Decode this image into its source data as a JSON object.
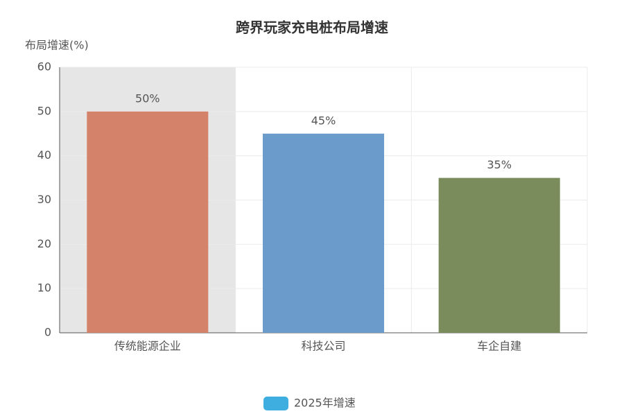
{
  "chart_data": {
    "type": "bar",
    "title": "跨界玩家充电桩布局增速",
    "y_label": "布局增速(%)",
    "categories": [
      "传统能源企业",
      "科技公司",
      "车企自建"
    ],
    "series": [
      {
        "name": "2025年增速",
        "color": "#3eaee0",
        "values": [
          50,
          45,
          35
        ],
        "value_labels": [
          "50%",
          "45%",
          "35%"
        ]
      }
    ],
    "bar_colors": [
      "#d5826a",
      "#6b9bcb",
      "#7a8c5c"
    ],
    "ylim": [
      0,
      60
    ],
    "yticks": [
      0,
      10,
      20,
      30,
      40,
      50,
      60
    ],
    "grid": true
  }
}
